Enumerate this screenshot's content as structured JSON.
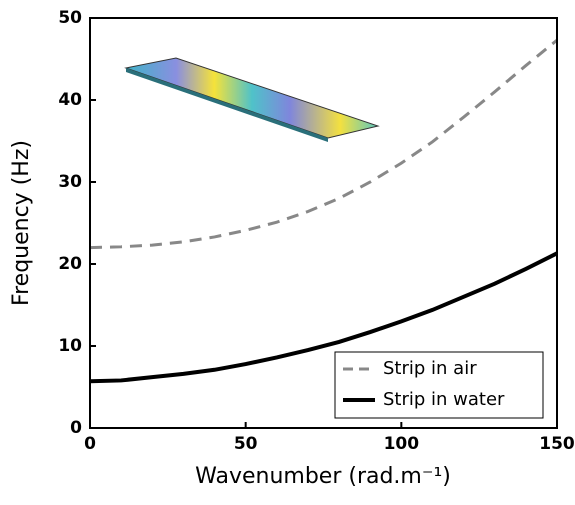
{
  "chart_data": {
    "type": "line",
    "x_label": "Wavenumber (rad.m⁻¹)",
    "y_label": "Frequency (Hz)",
    "x": [
      0,
      10,
      20,
      30,
      40,
      50,
      60,
      70,
      80,
      90,
      100,
      110,
      120,
      130,
      140,
      150
    ],
    "series": [
      {
        "name": "Strip in air",
        "color": "#888888",
        "dash": true,
        "values": [
          22,
          22.1,
          22.3,
          22.7,
          23.3,
          24.1,
          25.1,
          26.4,
          28,
          30,
          32.3,
          34.9,
          37.9,
          41,
          44.2,
          47.3
        ]
      },
      {
        "name": "Strip in water",
        "color": "#000000",
        "dash": false,
        "values": [
          5.7,
          5.8,
          6.2,
          6.6,
          7.1,
          7.8,
          8.6,
          9.5,
          10.5,
          11.7,
          13.0,
          14.4,
          16.0,
          17.6,
          19.4,
          21.3
        ]
      }
    ],
    "xlim": [
      0,
      150
    ],
    "xticks": [
      0,
      50,
      100,
      150
    ],
    "ylim": [
      0,
      50
    ],
    "yticks": [
      0,
      10,
      20,
      30,
      40,
      50
    ],
    "legend": "lower right"
  }
}
